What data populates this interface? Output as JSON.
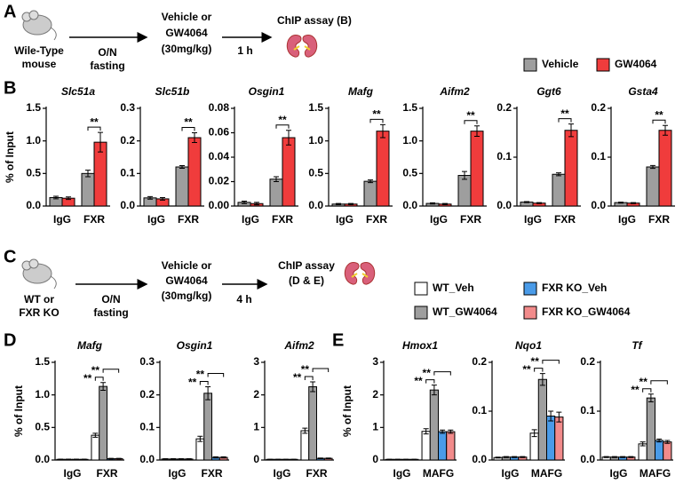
{
  "panel_labels": [
    "A",
    "B",
    "C",
    "D",
    "E"
  ],
  "diagram_a": {
    "mouse_label": [
      "Wile-Type",
      "mouse"
    ],
    "step1": [
      "O/N",
      "fasting"
    ],
    "treatment": [
      "Vehicle or",
      "GW4064",
      "(30mg/kg)"
    ],
    "step2": "1 h",
    "assay": "ChIP assay (B)"
  },
  "diagram_c": {
    "mouse_label": [
      "WT or",
      "FXR KO"
    ],
    "step1": [
      "O/N",
      "fasting"
    ],
    "treatment": [
      "Vehicle or",
      "GW4064",
      "(30mg/kg)"
    ],
    "step2": "4 h",
    "assay": [
      "ChIP assay",
      "(D & E)"
    ]
  },
  "chart_data": [
    {
      "type": "bar",
      "title": "Slc51a",
      "ylabel": "% of Input",
      "categories": [
        "IgG",
        "FXR"
      ],
      "ylim": [
        0,
        1.5
      ],
      "yticks": [
        {
          "value": 0,
          "label": "0.0"
        },
        {
          "value": 0.5,
          "label": "0.5"
        },
        {
          "value": 1,
          "label": "1.0"
        },
        {
          "value": 1.5,
          "label": "1.5"
        }
      ],
      "annotations": [
        "**"
      ],
      "series": [
        {
          "name": "Vehicle",
          "color": "#9e9e9e",
          "values": [
            0.13,
            0.5
          ],
          "errors": [
            0.02,
            0.05
          ]
        },
        {
          "name": "GW4064",
          "color": "#f03c3c",
          "values": [
            0.12,
            0.98
          ],
          "errors": [
            0.02,
            0.15
          ]
        }
      ]
    },
    {
      "type": "bar",
      "title": "Slc51b",
      "categories": [
        "IgG",
        "FXR"
      ],
      "ylim": [
        0,
        0.3
      ],
      "yticks": [
        {
          "value": 0,
          "label": "0.0"
        },
        0.1,
        0.2,
        0.3
      ],
      "annotations": [
        "**"
      ],
      "series": [
        {
          "name": "Vehicle",
          "color": "#9e9e9e",
          "values": [
            0.025,
            0.12
          ],
          "errors": [
            0.004,
            0.004
          ]
        },
        {
          "name": "GW4064",
          "color": "#f03c3c",
          "values": [
            0.022,
            0.21
          ],
          "errors": [
            0.004,
            0.015
          ]
        }
      ]
    },
    {
      "type": "bar",
      "title": "Osgin1",
      "categories": [
        "IgG",
        "FXR"
      ],
      "ylim": [
        0,
        0.08
      ],
      "yticks": [
        {
          "value": 0,
          "label": "0.00"
        },
        0.02,
        0.04,
        0.06,
        0.08
      ],
      "annotations": [
        "**"
      ],
      "series": [
        {
          "name": "Vehicle",
          "color": "#9e9e9e",
          "values": [
            0.003,
            0.022
          ],
          "errors": [
            0.001,
            0.002
          ]
        },
        {
          "name": "GW4064",
          "color": "#f03c3c",
          "values": [
            0.002,
            0.056
          ],
          "errors": [
            0.001,
            0.006
          ]
        }
      ]
    },
    {
      "type": "bar",
      "title": "Mafg",
      "categories": [
        "IgG",
        "FXR"
      ],
      "ylim": [
        0,
        1.5
      ],
      "yticks": [
        {
          "value": 0,
          "label": "0.0"
        },
        {
          "value": 0.5,
          "label": "0.5"
        },
        {
          "value": 1,
          "label": "1.0"
        },
        {
          "value": 1.5,
          "label": "1.5"
        }
      ],
      "annotations": [
        "**"
      ],
      "series": [
        {
          "name": "Vehicle",
          "color": "#9e9e9e",
          "values": [
            0.03,
            0.38
          ],
          "errors": [
            0.01,
            0.02
          ]
        },
        {
          "name": "GW4064",
          "color": "#f03c3c",
          "values": [
            0.03,
            1.15
          ],
          "errors": [
            0.01,
            0.1
          ]
        }
      ]
    },
    {
      "type": "bar",
      "title": "Aifm2",
      "categories": [
        "IgG",
        "FXR"
      ],
      "ylim": [
        0,
        1.5
      ],
      "yticks": [
        {
          "value": 0,
          "label": "0.0"
        },
        {
          "value": 0.5,
          "label": "0.5"
        },
        {
          "value": 1,
          "label": "1.0"
        },
        {
          "value": 1.5,
          "label": "1.5"
        }
      ],
      "annotations": [
        "**"
      ],
      "series": [
        {
          "name": "Vehicle",
          "color": "#9e9e9e",
          "values": [
            0.04,
            0.47
          ],
          "errors": [
            0.01,
            0.06
          ]
        },
        {
          "name": "GW4064",
          "color": "#f03c3c",
          "values": [
            0.03,
            1.15
          ],
          "errors": [
            0.01,
            0.08
          ]
        }
      ]
    },
    {
      "type": "bar",
      "title": "Ggt6",
      "categories": [
        "IgG",
        "FXR"
      ],
      "ylim": [
        0,
        0.2
      ],
      "yticks": [
        {
          "value": 0,
          "label": "0.0"
        },
        0.1,
        0.2
      ],
      "annotations": [
        "**"
      ],
      "series": [
        {
          "name": "Vehicle",
          "color": "#9e9e9e",
          "values": [
            0.008,
            0.065
          ],
          "errors": [
            0.001,
            0.003
          ]
        },
        {
          "name": "GW4064",
          "color": "#f03c3c",
          "values": [
            0.006,
            0.155
          ],
          "errors": [
            0.001,
            0.013
          ]
        }
      ]
    },
    {
      "type": "bar",
      "title": "Gsta4",
      "categories": [
        "IgG",
        "FXR"
      ],
      "ylim": [
        0,
        0.2
      ],
      "yticks": [
        {
          "value": 0,
          "label": "0.0"
        },
        0.1,
        0.2
      ],
      "annotations": [
        "**"
      ],
      "series": [
        {
          "name": "Vehicle",
          "color": "#9e9e9e",
          "values": [
            0.007,
            0.08
          ],
          "errors": [
            0.001,
            0.003
          ]
        },
        {
          "name": "GW4064",
          "color": "#f03c3c",
          "values": [
            0.006,
            0.155
          ],
          "errors": [
            0.001,
            0.01
          ]
        }
      ]
    },
    {
      "type": "bar",
      "title": "Mafg",
      "ylabel": "% of Input",
      "categories": [
        "IgG",
        "FXR"
      ],
      "ylim": [
        0,
        1.5
      ],
      "yticks": [
        {
          "value": 0,
          "label": "0.0"
        },
        {
          "value": 0.5,
          "label": "0.5"
        },
        {
          "value": 1,
          "label": "1.0"
        },
        {
          "value": 1.5,
          "label": "1.5"
        }
      ],
      "annotations": [
        "**",
        "**"
      ],
      "series": [
        {
          "name": "WT_Veh",
          "color": "#ffffff",
          "values": [
            0.01,
            0.38
          ],
          "errors": [
            0.003,
            0.03
          ]
        },
        {
          "name": "WT_GW4064",
          "color": "#9e9e9e",
          "values": [
            0.01,
            1.13
          ],
          "errors": [
            0.003,
            0.06
          ]
        },
        {
          "name": "FXR KO_Veh",
          "color": "#4a9be8",
          "values": [
            0.01,
            0.02
          ],
          "errors": [
            0.003,
            0.005
          ]
        },
        {
          "name": "FXR KO_GW4064",
          "color": "#f28b8b",
          "values": [
            0.01,
            0.02
          ],
          "errors": [
            0.003,
            0.005
          ]
        }
      ]
    },
    {
      "type": "bar",
      "title": "Osgin1",
      "categories": [
        "IgG",
        "FXR"
      ],
      "ylim": [
        0,
        0.3
      ],
      "yticks": [
        {
          "value": 0,
          "label": "0.0"
        },
        0.1,
        0.2,
        0.3
      ],
      "annotations": [
        "**",
        "**"
      ],
      "series": [
        {
          "name": "WT_Veh",
          "color": "#ffffff",
          "values": [
            0.003,
            0.065
          ],
          "errors": [
            0.001,
            0.008
          ]
        },
        {
          "name": "WT_GW4064",
          "color": "#9e9e9e",
          "values": [
            0.003,
            0.205
          ],
          "errors": [
            0.001,
            0.02
          ]
        },
        {
          "name": "FXR KO_Veh",
          "color": "#4a9be8",
          "values": [
            0.003,
            0.008
          ],
          "errors": [
            0.001,
            0.002
          ]
        },
        {
          "name": "FXR KO_GW4064",
          "color": "#f28b8b",
          "values": [
            0.003,
            0.008
          ],
          "errors": [
            0.001,
            0.002
          ]
        }
      ]
    },
    {
      "type": "bar",
      "title": "Aifm2",
      "categories": [
        "IgG",
        "FXR"
      ],
      "ylim": [
        0,
        3
      ],
      "yticks": [
        0,
        1,
        2,
        3
      ],
      "annotations": [
        "**",
        "**"
      ],
      "series": [
        {
          "name": "WT_Veh",
          "color": "#ffffff",
          "values": [
            0.02,
            0.9
          ],
          "errors": [
            0.005,
            0.08
          ]
        },
        {
          "name": "WT_GW4064",
          "color": "#9e9e9e",
          "values": [
            0.02,
            2.25
          ],
          "errors": [
            0.005,
            0.15
          ]
        },
        {
          "name": "FXR KO_Veh",
          "color": "#4a9be8",
          "values": [
            0.02,
            0.05
          ],
          "errors": [
            0.005,
            0.01
          ]
        },
        {
          "name": "FXR KO_GW4064",
          "color": "#f28b8b",
          "values": [
            0.02,
            0.05
          ],
          "errors": [
            0.005,
            0.01
          ]
        }
      ]
    },
    {
      "type": "bar",
      "title": "Hmox1",
      "ylabel": "% of Input",
      "categories": [
        "IgG",
        "MAFG"
      ],
      "ylim": [
        0,
        3
      ],
      "yticks": [
        0,
        1,
        2,
        3
      ],
      "annotations": [
        "**",
        "**"
      ],
      "series": [
        {
          "name": "WT_Veh",
          "color": "#ffffff",
          "values": [
            0.02,
            0.88
          ],
          "errors": [
            0.005,
            0.08
          ]
        },
        {
          "name": "WT_GW4064",
          "color": "#9e9e9e",
          "values": [
            0.02,
            2.15
          ],
          "errors": [
            0.005,
            0.15
          ]
        },
        {
          "name": "FXR KO_Veh",
          "color": "#4a9be8",
          "values": [
            0.02,
            0.87
          ],
          "errors": [
            0.005,
            0.05
          ]
        },
        {
          "name": "FXR KO_GW4064",
          "color": "#f28b8b",
          "values": [
            0.02,
            0.87
          ],
          "errors": [
            0.005,
            0.05
          ]
        }
      ]
    },
    {
      "type": "bar",
      "title": "Nqo1",
      "categories": [
        "IgG",
        "MAFG"
      ],
      "ylim": [
        0,
        0.2
      ],
      "yticks": [
        {
          "value": 0,
          "label": "0.0"
        },
        0.1,
        0.2
      ],
      "annotations": [
        "**",
        "**"
      ],
      "series": [
        {
          "name": "WT_Veh",
          "color": "#ffffff",
          "values": [
            0.005,
            0.055
          ],
          "errors": [
            0.001,
            0.007
          ]
        },
        {
          "name": "WT_GW4064",
          "color": "#9e9e9e",
          "values": [
            0.006,
            0.165
          ],
          "errors": [
            0.001,
            0.012
          ]
        },
        {
          "name": "FXR KO_Veh",
          "color": "#4a9be8",
          "values": [
            0.006,
            0.09
          ],
          "errors": [
            0.001,
            0.01
          ]
        },
        {
          "name": "FXR KO_GW4064",
          "color": "#f28b8b",
          "values": [
            0.006,
            0.088
          ],
          "errors": [
            0.001,
            0.01
          ]
        }
      ]
    },
    {
      "type": "bar",
      "title": "Tf",
      "categories": [
        "IgG",
        "MAFG"
      ],
      "ylim": [
        0,
        0.2
      ],
      "yticks": [
        {
          "value": 0,
          "label": "0.0"
        },
        0.1,
        0.2
      ],
      "annotations": [
        "**",
        "**"
      ],
      "series": [
        {
          "name": "WT_Veh",
          "color": "#ffffff",
          "values": [
            0.006,
            0.033
          ],
          "errors": [
            0.001,
            0.004
          ]
        },
        {
          "name": "WT_GW4064",
          "color": "#9e9e9e",
          "values": [
            0.006,
            0.127
          ],
          "errors": [
            0.001,
            0.008
          ]
        },
        {
          "name": "FXR KO_Veh",
          "color": "#4a9be8",
          "values": [
            0.006,
            0.04
          ],
          "errors": [
            0.001,
            0.003
          ]
        },
        {
          "name": "FXR KO_GW4064",
          "color": "#f28b8b",
          "values": [
            0.006,
            0.037
          ],
          "errors": [
            0.001,
            0.003
          ]
        }
      ]
    }
  ]
}
